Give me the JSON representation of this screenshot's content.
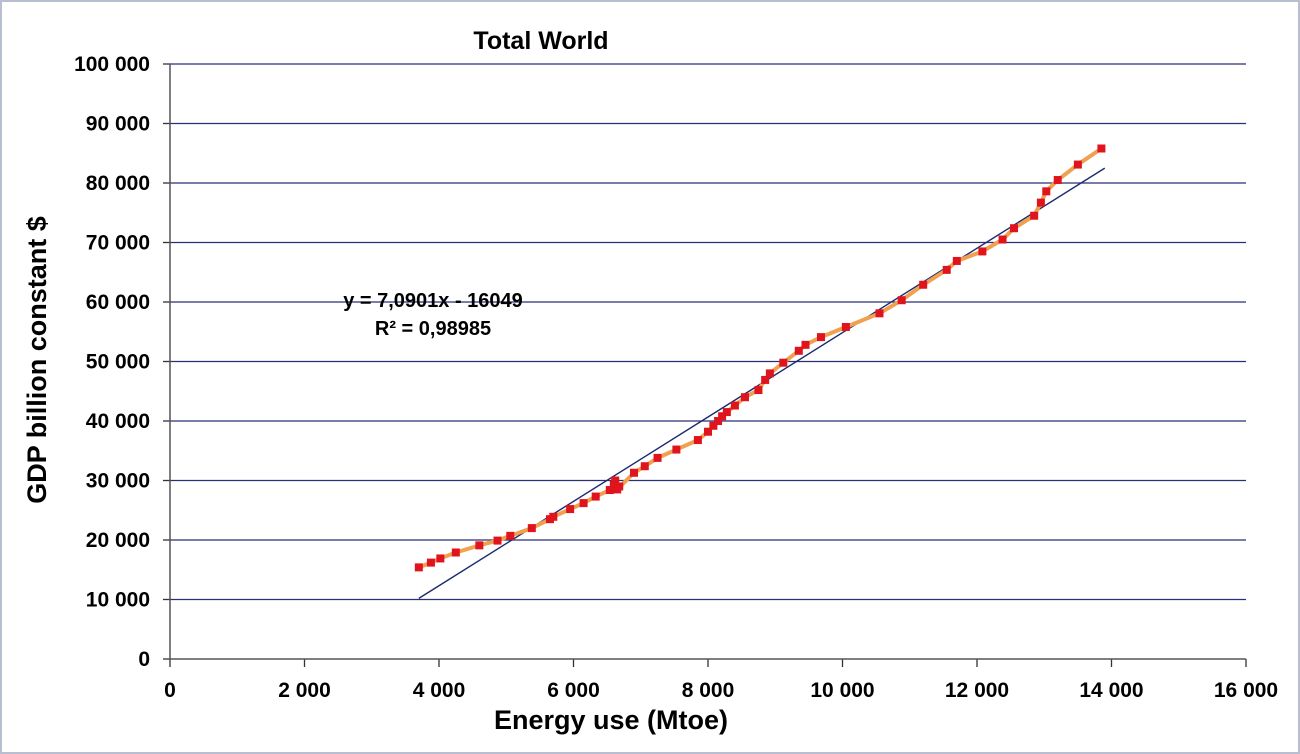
{
  "chart_data": {
    "type": "scatter",
    "title": "Total World",
    "xlabel": "Energy use (Mtoe)",
    "ylabel": "GDP billion constant $",
    "xlim": [
      0,
      16000
    ],
    "ylim": [
      0,
      100000
    ],
    "x_ticks": [
      "0",
      "2 000",
      "4 000",
      "6 000",
      "8 000",
      "10 000",
      "12 000",
      "14 000",
      "16 000"
    ],
    "y_ticks": [
      "0",
      "10 000",
      "20 000",
      "30 000",
      "40 000",
      "50 000",
      "60 000",
      "70 000",
      "80 000",
      "90 000",
      "100 000"
    ],
    "grid": "horizontal",
    "colors": {
      "line": "#f0a050",
      "marker": "#e0141c",
      "trend": "#1a2a6e",
      "grid": "#2a2f78"
    },
    "series": [
      {
        "marker": "square",
        "points": [
          [
            3700,
            15400
          ],
          [
            3880,
            16200
          ],
          [
            4020,
            16900
          ],
          [
            4250,
            17900
          ],
          [
            4600,
            19100
          ],
          [
            4870,
            19900
          ],
          [
            5060,
            20700
          ],
          [
            5380,
            22000
          ],
          [
            5650,
            23500
          ],
          [
            5700,
            23900
          ],
          [
            5950,
            25200
          ],
          [
            6150,
            26200
          ],
          [
            6330,
            27300
          ],
          [
            6540,
            28400
          ],
          [
            6600,
            29300
          ],
          [
            6620,
            30000
          ],
          [
            6680,
            29000
          ],
          [
            6650,
            28500
          ],
          [
            6900,
            31300
          ],
          [
            7060,
            32400
          ],
          [
            7250,
            33800
          ],
          [
            7530,
            35200
          ],
          [
            7850,
            36800
          ],
          [
            8000,
            38200
          ],
          [
            8080,
            39200
          ],
          [
            8150,
            40000
          ],
          [
            8210,
            40800
          ],
          [
            8280,
            41500
          ],
          [
            8400,
            42600
          ],
          [
            8550,
            44000
          ],
          [
            8750,
            45200
          ],
          [
            8850,
            46900
          ],
          [
            8920,
            48000
          ],
          [
            9120,
            49800
          ],
          [
            9350,
            51800
          ],
          [
            9450,
            52800
          ],
          [
            9680,
            54100
          ],
          [
            10050,
            55800
          ],
          [
            10550,
            58100
          ],
          [
            10880,
            60300
          ],
          [
            11200,
            62900
          ],
          [
            11550,
            65400
          ],
          [
            11700,
            66900
          ],
          [
            12080,
            68500
          ],
          [
            12380,
            70500
          ],
          [
            12550,
            72400
          ],
          [
            12850,
            74500
          ],
          [
            12950,
            76700
          ],
          [
            13030,
            78600
          ],
          [
            13200,
            80500
          ],
          [
            13500,
            83100
          ],
          [
            13850,
            85800
          ]
        ]
      }
    ],
    "trendline": {
      "slope": 7.0901,
      "intercept": -16049,
      "x_range": [
        3700,
        13900
      ],
      "equation_label": "y = 7,0901x - 16049",
      "r2_label": "R² = 0,98985"
    }
  }
}
